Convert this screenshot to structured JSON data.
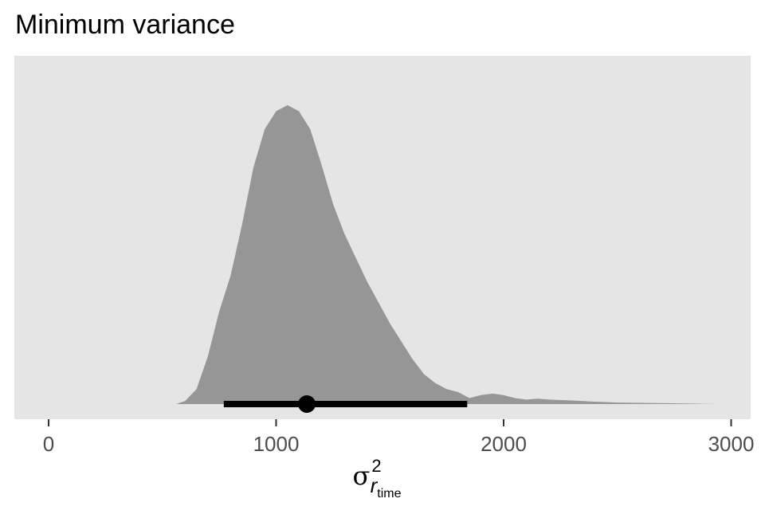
{
  "chart_data": {
    "type": "density",
    "title": "Minimum variance",
    "xlabel": {
      "symbol": "σ",
      "superscript": "2",
      "subscript": "r",
      "subsubscript": "time"
    },
    "ylabel": "",
    "xlim": [
      -150,
      3100
    ],
    "xticks": [
      0,
      1000,
      2000,
      3000
    ],
    "xtick_labels": [
      "0",
      "1000",
      "2000",
      "3000"
    ],
    "grid": false,
    "density": {
      "x": [
        560,
        600,
        650,
        700,
        750,
        800,
        850,
        900,
        950,
        1000,
        1050,
        1100,
        1150,
        1200,
        1250,
        1300,
        1350,
        1400,
        1450,
        1500,
        1550,
        1600,
        1650,
        1700,
        1750,
        1800,
        1850,
        1900,
        1950,
        2000,
        2050,
        2100,
        2150,
        2200,
        2300,
        2400,
        2500,
        2600,
        2700,
        2800,
        2940
      ],
      "y": [
        0.0,
        0.01,
        0.05,
        0.16,
        0.31,
        0.43,
        0.6,
        0.79,
        0.92,
        0.98,
        1.0,
        0.98,
        0.92,
        0.8,
        0.67,
        0.57,
        0.49,
        0.41,
        0.34,
        0.27,
        0.21,
        0.15,
        0.1,
        0.07,
        0.05,
        0.04,
        0.02,
        0.03,
        0.035,
        0.03,
        0.02,
        0.015,
        0.018,
        0.015,
        0.012,
        0.008,
        0.005,
        0.004,
        0.003,
        0.002,
        0.0
      ],
      "fill": "#969696"
    },
    "point_estimate": 1135,
    "interval": [
      770,
      1840
    ],
    "interval_color": "#000000",
    "panel_background": "#e5e5e5"
  }
}
